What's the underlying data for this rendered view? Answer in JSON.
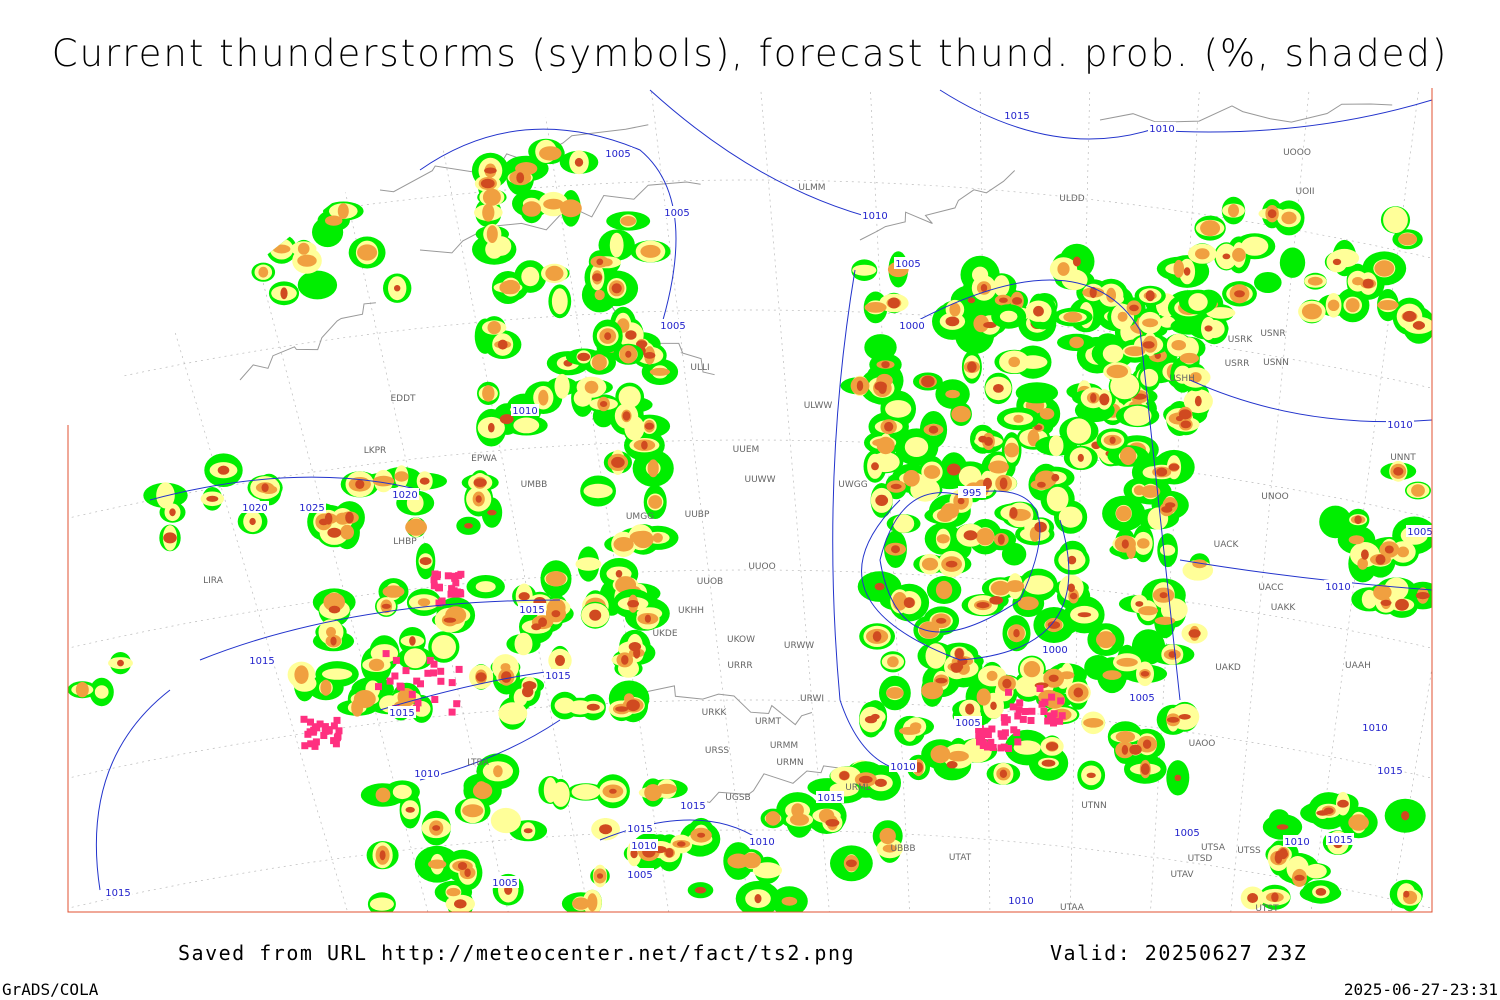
{
  "header": {
    "title": "Current thunderstorms (symbols), forecast thund. prob. (%, shaded)"
  },
  "map": {
    "isobar_labels": [
      1005,
      1005,
      1005,
      1010,
      1020,
      1020,
      1025,
      1015,
      1015,
      1015,
      1015,
      1010,
      1015,
      1015,
      1010,
      1005,
      1005,
      1010,
      1015,
      1015,
      1015,
      1010,
      1010,
      1005,
      1000,
      995,
      1000,
      1005,
      1005,
      1010,
      1010,
      1005,
      1010,
      1010,
      1015,
      1015,
      1010,
      1005,
      1010
    ],
    "station_labels": [
      "ULMM",
      "ULDD",
      "UOOO",
      "UOII",
      "ULLI",
      "ULWW",
      "UUEM",
      "UUWW",
      "UWGG",
      "EDDT",
      "LKPR",
      "EPWA",
      "UMBB",
      "UMGG",
      "UUBP",
      "UUOO",
      "UUOB",
      "UKHH",
      "UKDE",
      "UKOW",
      "URRR",
      "URWW",
      "URWI",
      "URKK",
      "URMT",
      "URMM",
      "URSS",
      "URMN",
      "UGSB",
      "URML",
      "UBBB",
      "UTAT",
      "UTNN",
      "UAOO",
      "UAKD",
      "UAKK",
      "UACC",
      "UACK",
      "UNOO",
      "UNNT",
      "UAAH",
      "USRR",
      "USNN",
      "USHH",
      "USRK",
      "USNR",
      "LIRA",
      "LHBP",
      "LTBA",
      "UTAA",
      "UTST",
      "UTSS",
      "UTSA",
      "UTSD",
      "UTAV"
    ]
  },
  "footer": {
    "source": "Saved from URL http://meteocenter.net/fact/ts2.png",
    "valid": "Valid: 20250627 23Z",
    "software": "GrADS/COLA",
    "timestamp": "2025-06-27-23:31"
  }
}
